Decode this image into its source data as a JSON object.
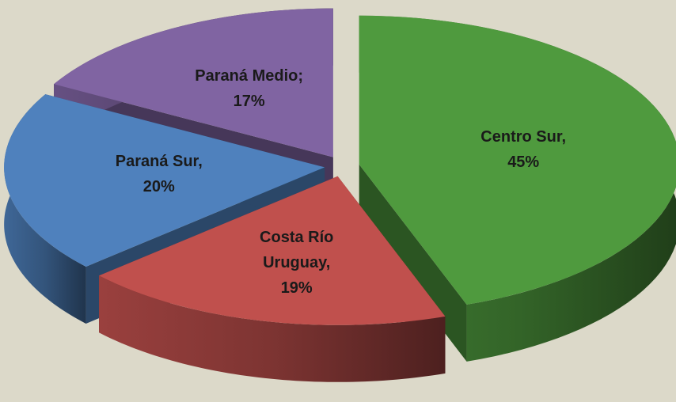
{
  "chart_data": {
    "type": "pie",
    "categories": [
      "Centro Sur,",
      "Costa Río Uruguay,",
      "Paraná Sur,",
      "Paraná Medio;"
    ],
    "values": [
      45,
      19,
      20,
      17
    ],
    "value_labels": [
      "45%",
      "19%",
      "20%",
      "17%"
    ],
    "colors": [
      "#4f9a3e",
      "#c0504d",
      "#4f81bd",
      "#8064a2"
    ]
  }
}
